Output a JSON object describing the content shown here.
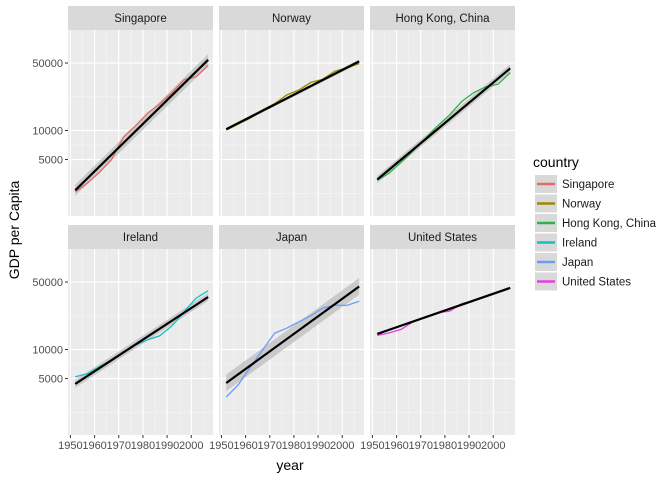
{
  "chart_data": {
    "type": "line",
    "xlabel": "year",
    "ylabel": "GDP per Capita",
    "y_scale": "log10",
    "xlim": [
      1949,
      2009
    ],
    "ylim": [
      1300,
      110000
    ],
    "x_ticks": [
      1950,
      1960,
      1970,
      1980,
      1990,
      2000
    ],
    "x_tick_labels": [
      "1950",
      "1960",
      "1970",
      "1980",
      "1990",
      "2000"
    ],
    "y_ticks": [
      5000,
      10000,
      50000
    ],
    "y_tick_labels": [
      "5000",
      "10000",
      "50000"
    ],
    "grid": true,
    "legend": {
      "title": "country",
      "placement": "right"
    },
    "smooth": {
      "method": "linear fit on log scale",
      "color": "#000000",
      "band_color": "#bdbdbd"
    },
    "facets": [
      {
        "name": "Singapore",
        "color": "#e06b6b",
        "x": [
          1952,
          1957,
          1962,
          1967,
          1972,
          1977,
          1982,
          1987,
          1992,
          1997,
          2002,
          2007
        ],
        "values": [
          2315,
          2843,
          3675,
          4977,
          8597,
          11210,
          15169,
          18862,
          24769,
          33519,
          36023,
          47143
        ],
        "fit": {
          "x": [
            1952,
            2007
          ],
          "values": [
            2400,
            54000
          ],
          "band": [
            [
              2100,
              2750
            ],
            [
              46500,
              62000
            ]
          ]
        }
      },
      {
        "name": "Norway",
        "color": "#9c8a00",
        "x": [
          1952,
          1957,
          1962,
          1967,
          1972,
          1977,
          1982,
          1987,
          1992,
          1997,
          2002,
          2007
        ],
        "values": [
          10095,
          11654,
          13450,
          16362,
          18965,
          23311,
          26298,
          31541,
          33966,
          41283,
          44684,
          49357
        ],
        "fit": {
          "x": [
            1952,
            2007
          ],
          "values": [
            10300,
            52000
          ],
          "band": [
            [
              9900,
              10700
            ],
            [
              49500,
              54500
            ]
          ]
        }
      },
      {
        "name": "Hong Kong, China",
        "color": "#2db34a",
        "x": [
          1952,
          1957,
          1962,
          1967,
          1972,
          1977,
          1982,
          1987,
          1992,
          1997,
          2002,
          2007
        ],
        "values": [
          3054,
          3629,
          4693,
          6198,
          8316,
          11186,
          14560,
          20038,
          24757,
          28378,
          30209,
          39725
        ],
        "fit": {
          "x": [
            1952,
            2007
          ],
          "values": [
            3100,
            44000
          ],
          "band": [
            [
              2850,
              3400
            ],
            [
              40000,
              48500
            ]
          ]
        }
      },
      {
        "name": "Ireland",
        "color": "#16bfc4",
        "x": [
          1952,
          1957,
          1962,
          1967,
          1972,
          1977,
          1982,
          1987,
          1992,
          1997,
          2002,
          2007
        ],
        "values": [
          5210,
          5599,
          6632,
          7656,
          9531,
          11151,
          12618,
          13873,
          17558,
          24522,
          34077,
          40676
        ],
        "fit": {
          "x": [
            1952,
            2007
          ],
          "values": [
            4400,
            35000
          ],
          "band": [
            [
              4000,
              4850
            ],
            [
              32000,
              38500
            ]
          ]
        }
      },
      {
        "name": "Japan",
        "color": "#6a9df5",
        "x": [
          1952,
          1957,
          1962,
          1967,
          1972,
          1977,
          1982,
          1987,
          1992,
          1997,
          2002,
          2007
        ],
        "values": [
          3217,
          4318,
          6577,
          9847,
          14779,
          16610,
          19384,
          22376,
          26825,
          28817,
          28605,
          31656
        ],
        "fit": {
          "x": [
            1952,
            2007
          ],
          "values": [
            4500,
            45000
          ],
          "band": [
            [
              3700,
              5500
            ],
            [
              37000,
              55000
            ]
          ]
        }
      },
      {
        "name": "United States",
        "color": "#e83fe0",
        "x": [
          1952,
          1957,
          1962,
          1967,
          1972,
          1977,
          1982,
          1987,
          1992,
          1997,
          2002,
          2007
        ],
        "values": [
          13990,
          14847,
          16173,
          19530,
          21806,
          24073,
          25010,
          29884,
          32004,
          35767,
          39097,
          42952
        ],
        "fit": {
          "x": [
            1952,
            2007
          ],
          "values": [
            14500,
            43500
          ],
          "band": [
            [
              14100,
              14950
            ],
            [
              42000,
              45000
            ]
          ]
        }
      }
    ]
  }
}
